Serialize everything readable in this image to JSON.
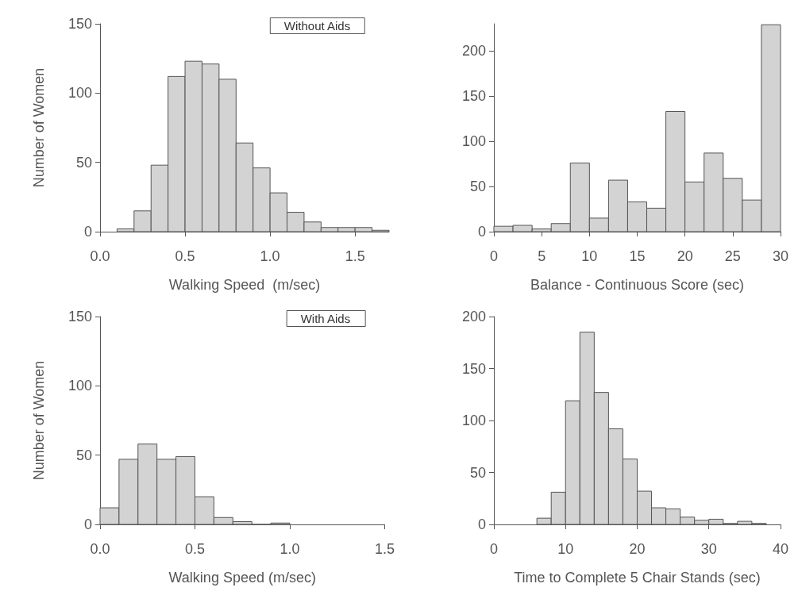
{
  "chart_data": [
    {
      "type": "histogram",
      "ylabel": "Number of Women",
      "xlabel": "Walking Speed  (m/sec)",
      "annotations": [
        "Without Aids"
      ],
      "color": "#d3d3d3",
      "bins": [
        0.1,
        0.2,
        0.3,
        0.4,
        0.5,
        0.6,
        0.7,
        0.8,
        0.9,
        1.0,
        1.1,
        1.2,
        1.3,
        1.4,
        1.5,
        1.6,
        1.7
      ],
      "values": [
        2,
        15,
        48,
        112,
        123,
        121,
        110,
        64,
        46,
        28,
        14,
        7,
        3,
        3,
        3,
        1
      ],
      "xlim": [
        0,
        1.7
      ],
      "xticks": [
        {
          "value": 0,
          "label": "0.0"
        },
        {
          "value": 0.5,
          "label": "0.5"
        },
        {
          "value": 1,
          "label": "1.0"
        },
        {
          "value": 1.5,
          "label": "1.5"
        }
      ],
      "ylim": [
        0,
        150
      ],
      "yticks": [
        0,
        50,
        100,
        150
      ],
      "grid": false
    },
    {
      "type": "histogram",
      "xlabel": "Balance - Continuous Score (sec)",
      "color": "#d3d3d3",
      "bins": [
        0,
        2,
        4,
        6,
        8,
        10,
        12,
        14,
        16,
        18,
        20,
        22,
        24,
        26,
        28,
        30
      ],
      "values": [
        6,
        7,
        3,
        9,
        76,
        15,
        57,
        33,
        26,
        133,
        55,
        87,
        59,
        35,
        229
      ],
      "xlim": [
        0,
        30
      ],
      "xticks": [
        0,
        5,
        10,
        15,
        20,
        25,
        30
      ],
      "ylim": [
        0,
        230
      ],
      "yticks": [
        0,
        50,
        100,
        150,
        200
      ],
      "grid": false
    },
    {
      "type": "histogram",
      "ylabel": "Number of Women",
      "xlabel": "Walking Speed (m/sec)",
      "annotations": [
        "With Aids"
      ],
      "color": "#d3d3d3",
      "bins": [
        0,
        0.1,
        0.2,
        0.3,
        0.4,
        0.5,
        0.6,
        0.7,
        0.8,
        0.9,
        1.0
      ],
      "values": [
        12,
        47,
        58,
        47,
        49,
        20,
        5,
        2,
        0,
        1
      ],
      "xlim": [
        0,
        1.5
      ],
      "xticks": [
        {
          "value": 0,
          "label": "0.0"
        },
        {
          "value": 0.5,
          "label": "0.5"
        },
        {
          "value": 1,
          "label": "1.0"
        },
        {
          "value": 1.5,
          "label": "1.5"
        }
      ],
      "ylim": [
        0,
        150
      ],
      "yticks": [
        0,
        50,
        100,
        150
      ],
      "grid": false
    },
    {
      "type": "histogram",
      "xlabel": "Time to Complete 5 Chair Stands (sec)",
      "color": "#d3d3d3",
      "bins": [
        6,
        8,
        10,
        12,
        14,
        16,
        18,
        20,
        22,
        24,
        26,
        28,
        30,
        32,
        34,
        36,
        38
      ],
      "values": [
        6,
        31,
        119,
        185,
        127,
        92,
        63,
        32,
        16,
        15,
        7,
        4,
        5,
        1,
        3,
        1
      ],
      "xlim": [
        0,
        40
      ],
      "xticks": [
        0,
        10,
        20,
        30,
        40
      ],
      "ylim": [
        0,
        200
      ],
      "yticks": [
        0,
        50,
        100,
        150,
        200
      ],
      "grid": false
    }
  ]
}
